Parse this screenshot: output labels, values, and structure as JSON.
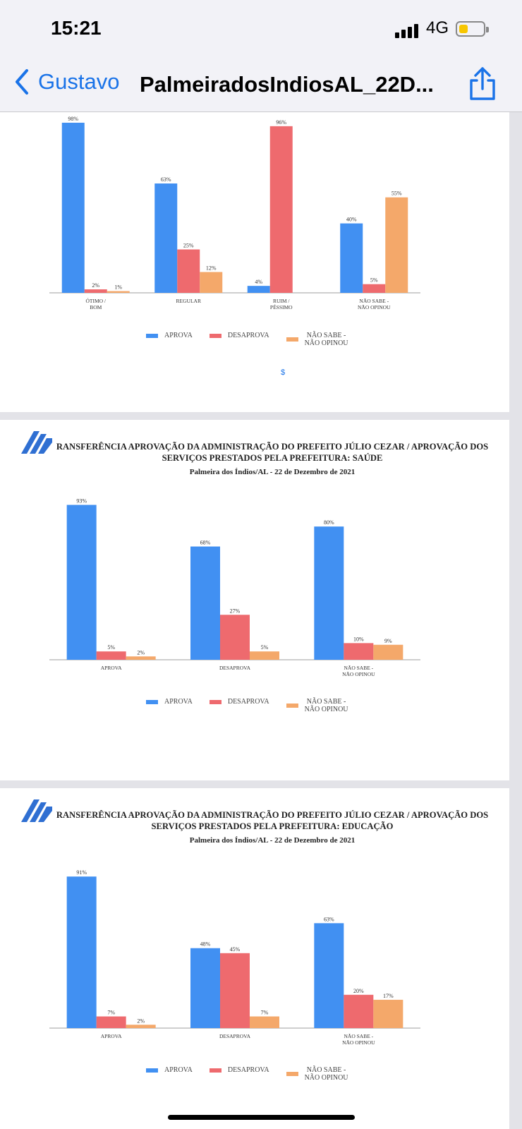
{
  "status_bar": {
    "time": "15:21",
    "network": "4G",
    "battery_level": 0.35
  },
  "nav": {
    "back_label": "Gustavo",
    "title": "PalmeiradosIndiosAL_22D...",
    "share_icon": "share-icon",
    "back_icon": "chevron-left-icon"
  },
  "colors": {
    "aprova": "#4190f2",
    "desaprova": "#ee6a6e",
    "nao_sabe": "#f4a86a",
    "ios_blue": "#1a73e8"
  },
  "page1": {
    "mini_label": "$"
  },
  "legend": {
    "aprova": "APROVA",
    "desaprova": "DESAPROVA",
    "nao_sabe": "NÃO SABE -\nNÃO OPINOU"
  },
  "chart2_header": {
    "title": "RANSFERÊNCIA APROVAÇÃO DA ADMINISTRAÇÃO DO PREFEITO JÚLIO CEZAR / APROVAÇÃO DOS SERVIÇOS PRESTADOS PELA PREFEITURA: SAÚDE",
    "subtitle": "Palmeira dos Índios/AL - 22 de Dezembro de 2021"
  },
  "chart3_header": {
    "title": "RANSFERÊNCIA APROVAÇÃO DA ADMINISTRAÇÃO DO PREFEITO JÚLIO CEZAR / APROVAÇÃO DOS SERVIÇOS PRESTADOS PELA PREFEITURA: EDUCAÇÃO",
    "subtitle": "Palmeira dos Índios/AL - 22 de Dezembro de 2021"
  },
  "chart_data": [
    {
      "type": "bar",
      "title": "",
      "categories": [
        "ÓTIMO /\nBOM",
        "REGULAR",
        "RUIM /\nPÉSSIMO",
        "NÃO SABE -\nNÃO OPINOU"
      ],
      "series": [
        {
          "name": "APROVA",
          "values": [
            98,
            63,
            4,
            40
          ]
        },
        {
          "name": "DESAPROVA",
          "values": [
            2,
            25,
            96,
            5
          ]
        },
        {
          "name": "NÃO SABE - NÃO OPINOU",
          "values": [
            1,
            12,
            null,
            55
          ]
        }
      ],
      "ylim": [
        0,
        100
      ],
      "grid": false,
      "legend": "bottom",
      "value_suffix": "%"
    },
    {
      "type": "bar",
      "title": "RANSFERÊNCIA APROVAÇÃO DA ADMINISTRAÇÃO DO PREFEITO JÚLIO CEZAR / APROVAÇÃO DOS SERVIÇOS PRESTADOS PELA PREFEITURA: SAÚDE",
      "subtitle": "Palmeira dos Índios/AL - 22 de Dezembro de 2021",
      "categories": [
        "APROVA",
        "DESAPROVA",
        "NÃO SABE -\nNÃO OPINOU"
      ],
      "series": [
        {
          "name": "APROVA",
          "values": [
            93,
            68,
            80
          ]
        },
        {
          "name": "DESAPROVA",
          "values": [
            5,
            27,
            10
          ]
        },
        {
          "name": "NÃO SABE - NÃO OPINOU",
          "values": [
            2,
            5,
            9
          ]
        }
      ],
      "ylim": [
        0,
        100
      ],
      "grid": false,
      "legend": "bottom",
      "value_suffix": "%"
    },
    {
      "type": "bar",
      "title": "RANSFERÊNCIA APROVAÇÃO DA ADMINISTRAÇÃO DO PREFEITO JÚLIO CEZAR / APROVAÇÃO DOS SERVIÇOS PRESTADOS PELA PREFEITURA: EDUCAÇÃO",
      "subtitle": "Palmeira dos Índios/AL - 22 de Dezembro de 2021",
      "categories": [
        "APROVA",
        "DESAPROVA",
        "NÃO SABE -\nNÃO OPINOU"
      ],
      "series": [
        {
          "name": "APROVA",
          "values": [
            91,
            48,
            63
          ]
        },
        {
          "name": "DESAPROVA",
          "values": [
            7,
            45,
            20
          ]
        },
        {
          "name": "NÃO SABE - NÃO OPINOU",
          "values": [
            2,
            7,
            17
          ]
        }
      ],
      "ylim": [
        0,
        100
      ],
      "grid": false,
      "legend": "bottom",
      "value_suffix": "%"
    }
  ]
}
